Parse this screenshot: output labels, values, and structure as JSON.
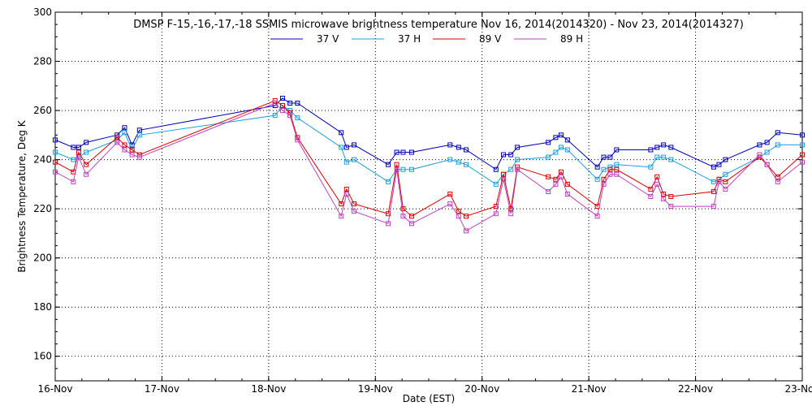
{
  "chart_data": {
    "type": "line",
    "title": "DMSP F-15,-16,-17,-18 SSMIS microwave brightness temperature Nov 16, 2014(2014320) - Nov 23, 2014(2014327)",
    "xlabel": "Date (EST)",
    "ylabel": "Brightness Temperature, Deg K",
    "xlim": [
      "16-Nov",
      "23-Nov"
    ],
    "ylim": [
      150,
      300
    ],
    "x_ticks": [
      "16-Nov",
      "17-Nov",
      "18-Nov",
      "19-Nov",
      "20-Nov",
      "21-Nov",
      "22-Nov",
      "23-Nov"
    ],
    "y_ticks": [
      160,
      180,
      200,
      220,
      240,
      260,
      280,
      300
    ],
    "grid": true,
    "legend_position": "top-center",
    "series": [
      {
        "name": "37 V",
        "color": "#0000bb",
        "points": [
          [
            0,
            248
          ],
          [
            0.17,
            245
          ],
          [
            0.22,
            245
          ],
          [
            0.29,
            247
          ],
          [
            0.58,
            250
          ],
          [
            0.65,
            253
          ],
          [
            0.72,
            246
          ],
          [
            0.79,
            252
          ],
          [
            2.06,
            262
          ],
          [
            2.13,
            265
          ],
          [
            2.2,
            263
          ],
          [
            2.27,
            263
          ],
          [
            2.68,
            251
          ],
          [
            2.73,
            245
          ],
          [
            2.8,
            246
          ],
          [
            3.12,
            238
          ],
          [
            3.2,
            243
          ],
          [
            3.26,
            243
          ],
          [
            3.34,
            243
          ],
          [
            3.7,
            246
          ],
          [
            3.78,
            245
          ],
          [
            3.85,
            244
          ],
          [
            4.13,
            236
          ],
          [
            4.2,
            242
          ],
          [
            4.27,
            242
          ],
          [
            4.33,
            245
          ],
          [
            4.62,
            247
          ],
          [
            4.69,
            249
          ],
          [
            4.74,
            250
          ],
          [
            4.8,
            248
          ],
          [
            5.08,
            237
          ],
          [
            5.14,
            241
          ],
          [
            5.2,
            241
          ],
          [
            5.26,
            244
          ],
          [
            5.58,
            244
          ],
          [
            5.64,
            245
          ],
          [
            5.7,
            246
          ],
          [
            5.77,
            245
          ],
          [
            6.17,
            237
          ],
          [
            6.22,
            238
          ],
          [
            6.28,
            240
          ],
          [
            6.6,
            246
          ],
          [
            6.67,
            247
          ],
          [
            6.77,
            251
          ],
          [
            7,
            250
          ]
        ]
      },
      {
        "name": "37 H",
        "color": "#1a9fdf",
        "points": [
          [
            0,
            243
          ],
          [
            0.17,
            240
          ],
          [
            0.22,
            241
          ],
          [
            0.29,
            243
          ],
          [
            0.58,
            248
          ],
          [
            0.65,
            251
          ],
          [
            0.72,
            244
          ],
          [
            0.79,
            250
          ],
          [
            2.06,
            258
          ],
          [
            2.13,
            262
          ],
          [
            2.2,
            260
          ],
          [
            2.27,
            257
          ],
          [
            2.68,
            245
          ],
          [
            2.73,
            239
          ],
          [
            2.8,
            240
          ],
          [
            3.12,
            231
          ],
          [
            3.2,
            236
          ],
          [
            3.26,
            236
          ],
          [
            3.34,
            236
          ],
          [
            3.7,
            240
          ],
          [
            3.78,
            239
          ],
          [
            3.85,
            238
          ],
          [
            4.13,
            230
          ],
          [
            4.2,
            234
          ],
          [
            4.27,
            236
          ],
          [
            4.33,
            240
          ],
          [
            4.62,
            241
          ],
          [
            4.69,
            243
          ],
          [
            4.74,
            245
          ],
          [
            4.8,
            244
          ],
          [
            5.08,
            232
          ],
          [
            5.14,
            236
          ],
          [
            5.2,
            237
          ],
          [
            5.26,
            238
          ],
          [
            5.58,
            237
          ],
          [
            5.64,
            241
          ],
          [
            5.7,
            241
          ],
          [
            5.77,
            240
          ],
          [
            6.17,
            231
          ],
          [
            6.22,
            232
          ],
          [
            6.28,
            234
          ],
          [
            6.6,
            241
          ],
          [
            6.67,
            243
          ],
          [
            6.77,
            246
          ],
          [
            7,
            246
          ]
        ]
      },
      {
        "name": "89 V",
        "color": "#dd0000",
        "points": [
          [
            0,
            239
          ],
          [
            0.17,
            235
          ],
          [
            0.22,
            243
          ],
          [
            0.29,
            238
          ],
          [
            0.58,
            249
          ],
          [
            0.65,
            246
          ],
          [
            0.72,
            244
          ],
          [
            0.79,
            242
          ],
          [
            2.06,
            264
          ],
          [
            2.13,
            262
          ],
          [
            2.2,
            259
          ],
          [
            2.27,
            249
          ],
          [
            2.68,
            222
          ],
          [
            2.73,
            228
          ],
          [
            2.8,
            222
          ],
          [
            3.12,
            218
          ],
          [
            3.2,
            238
          ],
          [
            3.26,
            220
          ],
          [
            3.34,
            217
          ],
          [
            3.7,
            226
          ],
          [
            3.78,
            219
          ],
          [
            3.85,
            217
          ],
          [
            4.13,
            221
          ],
          [
            4.2,
            234
          ],
          [
            4.27,
            220
          ],
          [
            4.33,
            237
          ],
          [
            4.62,
            233
          ],
          [
            4.69,
            232
          ],
          [
            4.74,
            235
          ],
          [
            4.8,
            230
          ],
          [
            5.08,
            221
          ],
          [
            5.14,
            232
          ],
          [
            5.2,
            236
          ],
          [
            5.26,
            236
          ],
          [
            5.58,
            228
          ],
          [
            5.64,
            233
          ],
          [
            5.7,
            226
          ],
          [
            5.77,
            225
          ],
          [
            6.17,
            227
          ],
          [
            6.22,
            232
          ],
          [
            6.28,
            231
          ],
          [
            6.6,
            241
          ],
          [
            6.67,
            238
          ],
          [
            6.77,
            233
          ],
          [
            7,
            242
          ]
        ]
      },
      {
        "name": "89 H",
        "color": "#c040c0",
        "points": [
          [
            0,
            235
          ],
          [
            0.17,
            231
          ],
          [
            0.22,
            241
          ],
          [
            0.29,
            234
          ],
          [
            0.58,
            247
          ],
          [
            0.65,
            244
          ],
          [
            0.72,
            242
          ],
          [
            0.79,
            241
          ],
          [
            2.06,
            263
          ],
          [
            2.13,
            260
          ],
          [
            2.2,
            258
          ],
          [
            2.27,
            248
          ],
          [
            2.68,
            217
          ],
          [
            2.73,
            226
          ],
          [
            2.8,
            219
          ],
          [
            3.12,
            214
          ],
          [
            3.2,
            236
          ],
          [
            3.26,
            217
          ],
          [
            3.34,
            214
          ],
          [
            3.7,
            222
          ],
          [
            3.78,
            217
          ],
          [
            3.85,
            211
          ],
          [
            4.13,
            218
          ],
          [
            4.2,
            232
          ],
          [
            4.27,
            218
          ],
          [
            4.33,
            236
          ],
          [
            4.62,
            227
          ],
          [
            4.69,
            230
          ],
          [
            4.74,
            233
          ],
          [
            4.8,
            226
          ],
          [
            5.08,
            217
          ],
          [
            5.14,
            230
          ],
          [
            5.2,
            234
          ],
          [
            5.26,
            234
          ],
          [
            5.58,
            225
          ],
          [
            5.64,
            230
          ],
          [
            5.7,
            224
          ],
          [
            5.77,
            221
          ],
          [
            6.17,
            221
          ],
          [
            6.22,
            231
          ],
          [
            6.28,
            228
          ],
          [
            6.6,
            242
          ],
          [
            6.67,
            238
          ],
          [
            6.77,
            231
          ],
          [
            7,
            239
          ]
        ]
      }
    ]
  }
}
